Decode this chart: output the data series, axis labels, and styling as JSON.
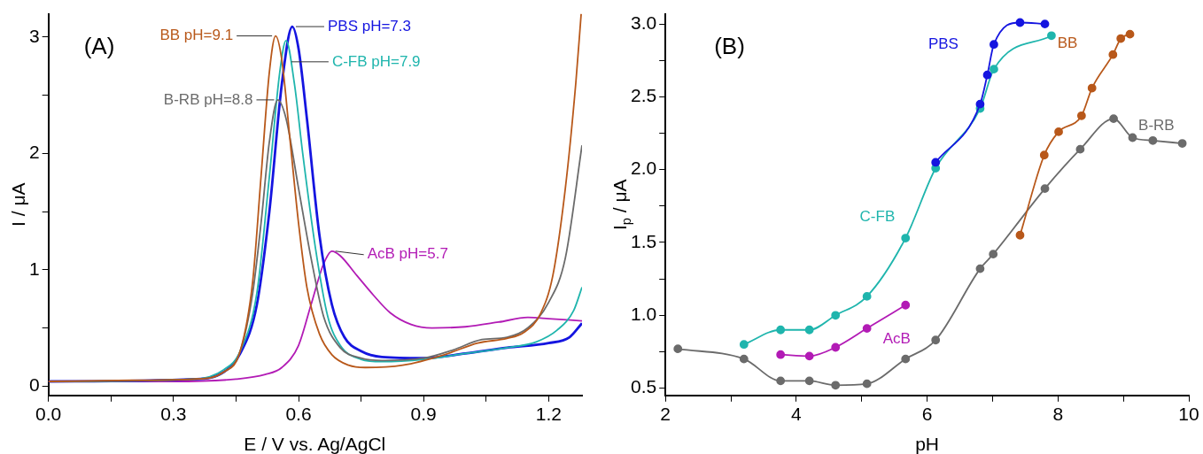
{
  "chart_data": [
    {
      "type": "line",
      "title": "(A)",
      "xlabel": "E / V vs. Ag/AgCl",
      "ylabel": "I / μA",
      "xlim": [
        0,
        1.28
      ],
      "xticks": [
        {
          "value": 0,
          "label": "0.0"
        },
        {
          "value": 0.15,
          "label": null
        },
        0.3,
        {
          "value": 0.45,
          "label": null
        },
        0.6,
        {
          "value": 0.75,
          "label": null
        },
        0.9,
        {
          "value": 1.05,
          "label": null
        },
        1.2
      ],
      "ylim": [
        -0.08,
        3.2
      ],
      "yticks": [
        0,
        {
          "value": 0.5,
          "label": null
        },
        1,
        {
          "value": 1.5,
          "label": null
        },
        2,
        {
          "value": 2.5,
          "label": null
        },
        3
      ],
      "grid": false,
      "legend": false,
      "marker": "none",
      "line_style": "solid",
      "series": [
        {
          "name": "BB pH=9.1",
          "color": "#b8581a",
          "x": [
            0,
            0.2,
            0.35,
            0.42,
            0.46,
            0.49,
            0.51,
            0.53,
            0.545,
            0.56,
            0.58,
            0.6,
            0.62,
            0.65,
            0.68,
            0.72,
            0.76,
            0.85,
            0.95,
            1.03,
            1.1,
            1.14,
            1.18,
            1.21,
            1.24,
            1.265,
            1.278
          ],
          "values": [
            0.04,
            0.05,
            0.06,
            0.12,
            0.3,
            0.9,
            1.8,
            2.7,
            3.01,
            2.8,
            2.1,
            1.4,
            0.85,
            0.45,
            0.27,
            0.18,
            0.16,
            0.18,
            0.27,
            0.37,
            0.41,
            0.46,
            0.62,
            0.95,
            1.7,
            2.6,
            3.2
          ]
        },
        {
          "name": "B-RB pH=8.8",
          "color": "#6b6b6b",
          "x": [
            0,
            0.35,
            0.42,
            0.46,
            0.49,
            0.51,
            0.53,
            0.55,
            0.57,
            0.6,
            0.63,
            0.66,
            0.7,
            0.75,
            0.8,
            0.9,
            0.97,
            1.04,
            1.1,
            1.15,
            1.2,
            1.24,
            1.28
          ],
          "values": [
            0.04,
            0.06,
            0.12,
            0.3,
            0.8,
            1.4,
            2.1,
            2.46,
            2.3,
            1.7,
            1.1,
            0.6,
            0.33,
            0.24,
            0.22,
            0.24,
            0.31,
            0.4,
            0.42,
            0.5,
            0.72,
            1.1,
            2.07
          ]
        },
        {
          "name": "C-FB pH=7.9",
          "color": "#1fb5ad",
          "x": [
            0,
            0.35,
            0.42,
            0.46,
            0.5,
            0.53,
            0.555,
            0.57,
            0.59,
            0.61,
            0.64,
            0.67,
            0.7,
            0.75,
            0.8,
            0.9,
            1.0,
            1.1,
            1.17,
            1.22,
            1.26,
            1.28
          ],
          "values": [
            0.04,
            0.06,
            0.14,
            0.3,
            0.8,
            1.8,
            2.7,
            2.97,
            2.6,
            2.0,
            1.2,
            0.6,
            0.35,
            0.23,
            0.21,
            0.23,
            0.28,
            0.33,
            0.38,
            0.48,
            0.65,
            0.85
          ]
        },
        {
          "name": "PBS pH=7.3",
          "color": "#1515e0",
          "x": [
            0,
            0.35,
            0.42,
            0.46,
            0.5,
            0.53,
            0.56,
            0.585,
            0.6,
            0.62,
            0.65,
            0.68,
            0.71,
            0.75,
            0.8,
            0.9,
            1.0,
            1.1,
            1.2,
            1.25,
            1.28
          ],
          "values": [
            0.04,
            0.06,
            0.12,
            0.28,
            0.7,
            1.5,
            2.6,
            3.09,
            2.9,
            2.3,
            1.3,
            0.7,
            0.42,
            0.3,
            0.25,
            0.24,
            0.28,
            0.33,
            0.37,
            0.42,
            0.54
          ]
        },
        {
          "name": "AcB pH=5.7",
          "color": "#b21bb5",
          "x": [
            0,
            0.3,
            0.45,
            0.52,
            0.56,
            0.6,
            0.63,
            0.66,
            0.68,
            0.7,
            0.74,
            0.78,
            0.82,
            0.87,
            0.92,
            1.0,
            1.08,
            1.15,
            1.2,
            1.28
          ],
          "values": [
            0.04,
            0.04,
            0.06,
            0.1,
            0.16,
            0.35,
            0.7,
            1.05,
            1.16,
            1.12,
            0.95,
            0.78,
            0.63,
            0.53,
            0.5,
            0.51,
            0.55,
            0.59,
            0.58,
            0.56
          ]
        }
      ]
    },
    {
      "type": "line",
      "title": "(B)",
      "xlabel": "pH",
      "ylabel": "I$_{p}$ / μA",
      "xlim": [
        2,
        10
      ],
      "xticks": [
        2,
        {
          "value": 3,
          "label": null
        },
        4,
        {
          "value": 5,
          "label": null
        },
        6,
        {
          "value": 7,
          "label": null
        },
        8,
        {
          "value": 9,
          "label": null
        },
        10
      ],
      "ylim": [
        0.45,
        3.07
      ],
      "yticks": [
        {
          "value": 0.5,
          "label": "0.5"
        },
        {
          "value": 0.75,
          "label": null
        },
        {
          "value": 1,
          "label": "1.0"
        },
        {
          "value": 1.25,
          "label": null
        },
        {
          "value": 1.5,
          "label": "1.5"
        },
        {
          "value": 1.75,
          "label": null
        },
        {
          "value": 2,
          "label": "2.0"
        },
        {
          "value": 2.25,
          "label": null
        },
        {
          "value": 2.5,
          "label": "2.5"
        },
        {
          "value": 2.75,
          "label": null
        },
        {
          "value": 3,
          "label": "3.0"
        }
      ],
      "grid": false,
      "legend": false,
      "marker": "circle",
      "line_style": "solid",
      "series": [
        {
          "name": "PBS",
          "color": "#1515e0",
          "x": [
            6.13,
            6.81,
            6.92,
            7.02,
            7.42,
            7.8
          ],
          "values": [
            2.05,
            2.45,
            2.65,
            2.86,
            3.01,
            3.0
          ]
        },
        {
          "name": "BB",
          "color": "#b8581a",
          "x": [
            7.42,
            7.79,
            8.01,
            8.36,
            8.52,
            8.84,
            8.96,
            9.1
          ],
          "values": [
            1.55,
            2.1,
            2.26,
            2.37,
            2.56,
            2.79,
            2.9,
            2.93
          ]
        },
        {
          "name": "B-RB",
          "color": "#6b6b6b",
          "x": [
            2.19,
            3.2,
            3.76,
            4.2,
            4.6,
            5.08,
            5.67,
            6.13,
            6.81,
            7.01,
            7.8,
            8.34,
            8.85,
            9.14,
            9.45,
            9.9
          ],
          "values": [
            0.77,
            0.7,
            0.55,
            0.55,
            0.52,
            0.53,
            0.7,
            0.83,
            1.32,
            1.42,
            1.87,
            2.14,
            2.35,
            2.22,
            2.2,
            2.18
          ]
        },
        {
          "name": "C-FB",
          "color": "#1fb5ad",
          "x": [
            3.2,
            3.76,
            4.2,
            4.6,
            5.08,
            5.67,
            6.13,
            6.81,
            7.02,
            7.9
          ],
          "values": [
            0.8,
            0.9,
            0.9,
            1.0,
            1.13,
            1.53,
            2.01,
            2.42,
            2.69,
            2.92
          ]
        },
        {
          "name": "AcB",
          "color": "#b21bb5",
          "x": [
            3.76,
            4.2,
            4.6,
            5.08,
            5.67
          ],
          "values": [
            0.73,
            0.72,
            0.78,
            0.91,
            1.07
          ]
        }
      ]
    }
  ]
}
